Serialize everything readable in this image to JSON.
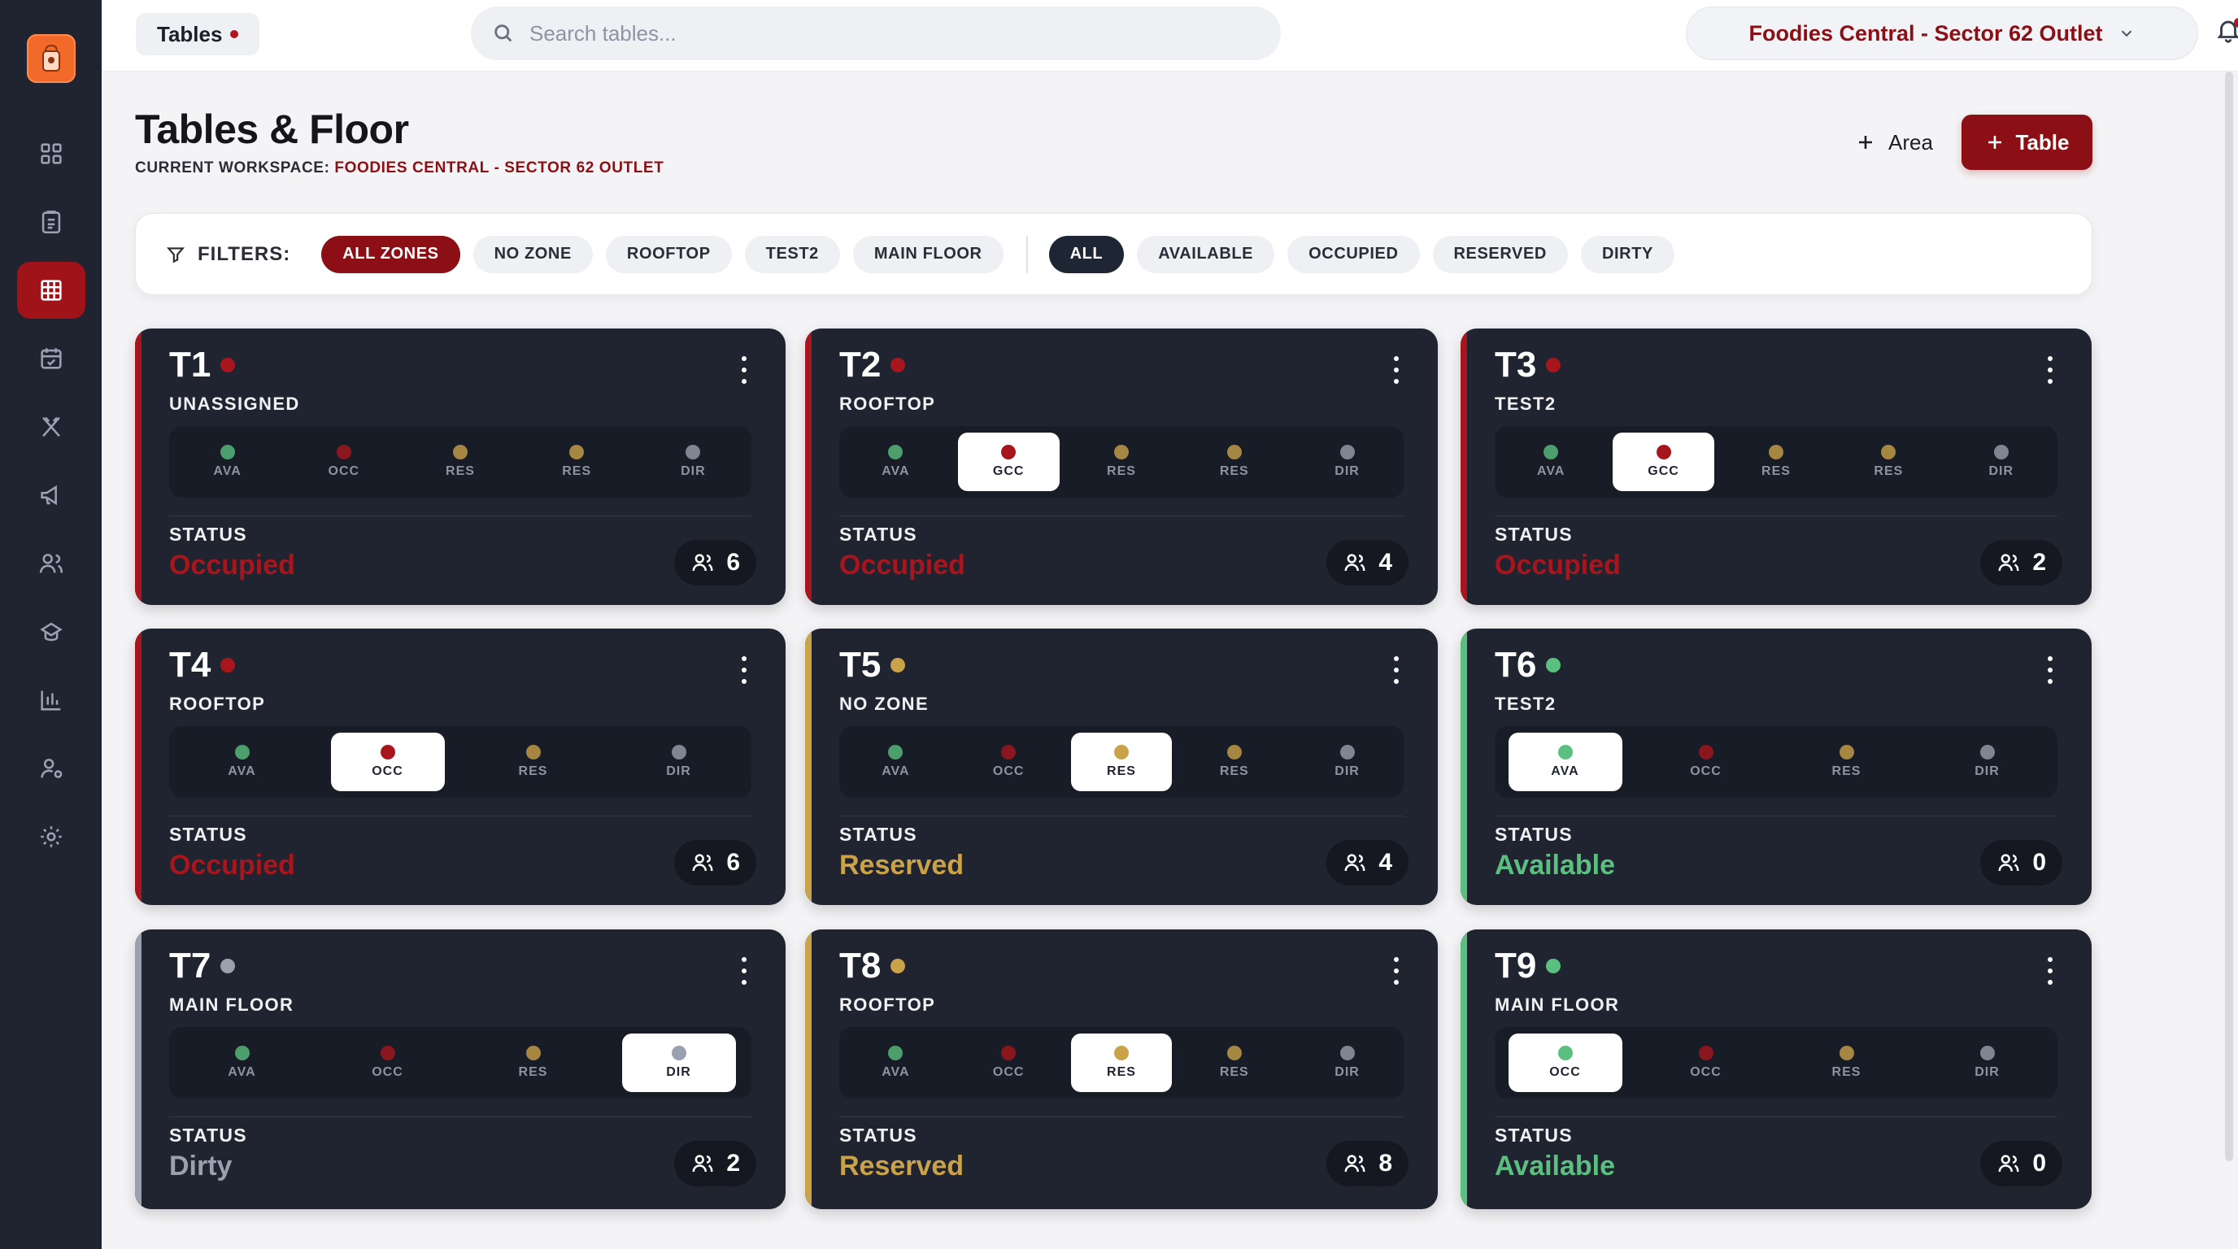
{
  "topbar": {
    "breadcrumb": "Tables",
    "search_placeholder": "Search tables...",
    "outlet": "Foodies Central - Sector 62 Outlet"
  },
  "sidebar": {
    "items": [
      {
        "name": "dashboard",
        "icon": "grid-icon",
        "active": false
      },
      {
        "name": "orders",
        "icon": "clipboard-icon",
        "active": false
      },
      {
        "name": "tables",
        "icon": "table-grid-icon",
        "active": true
      },
      {
        "name": "reservations",
        "icon": "calendar-check-icon",
        "active": false
      },
      {
        "name": "menu",
        "icon": "utensils-icon",
        "active": false
      },
      {
        "name": "marketing",
        "icon": "megaphone-icon",
        "active": false
      },
      {
        "name": "customers",
        "icon": "users-icon",
        "active": false
      },
      {
        "name": "kitchen",
        "icon": "chef-hat-icon",
        "active": false
      },
      {
        "name": "reports",
        "icon": "bar-chart-icon",
        "active": false
      },
      {
        "name": "staff",
        "icon": "user-settings-icon",
        "active": false
      },
      {
        "name": "settings",
        "icon": "gear-icon",
        "active": false
      }
    ]
  },
  "header": {
    "title": "Tables & Floor",
    "workspace_label": "CURRENT WORKSPACE:",
    "workspace_name": "FOODIES CENTRAL - SECTOR 62 OUTLET",
    "add_area_label": "Area",
    "add_table_label": "Table"
  },
  "filters": {
    "label": "FILTERS:",
    "zones": [
      "ALL ZONES",
      "NO ZONE",
      "ROOFTOP",
      "TEST2",
      "MAIN FLOOR"
    ],
    "active_zone": "ALL ZONES",
    "statuses": [
      "ALL",
      "AVAILABLE",
      "OCCUPIED",
      "RESERVED",
      "DIRTY"
    ],
    "active_status": "ALL"
  },
  "colors": {
    "occupied": "#a8161d",
    "reserved": "#c9a24a",
    "available": "#5bbf7f",
    "dirty": "#9aa0ad",
    "brand": "#8b0f14"
  },
  "tables": [
    {
      "id": "T1",
      "zone": "UNASSIGNED",
      "status_label": "STATUS",
      "status": "Occupied",
      "state": "occupied",
      "guests": "6",
      "options": [
        "AVA",
        "OCC",
        "RES",
        "RES",
        "DIR"
      ],
      "option_states": [
        "available",
        "occupied",
        "reserved",
        "reserved",
        "dirty"
      ],
      "selected": -1
    },
    {
      "id": "T2",
      "zone": "ROOFTOP",
      "status_label": "STATUS",
      "status": "Occupied",
      "state": "occupied",
      "guests": "4",
      "options": [
        "AVA",
        "GCC",
        "RES",
        "RES",
        "DIR"
      ],
      "option_states": [
        "available",
        "occupied",
        "reserved",
        "reserved",
        "dirty"
      ],
      "selected": 1
    },
    {
      "id": "T3",
      "zone": "TEST2",
      "status_label": "STATUS",
      "status": "Occupied",
      "state": "occupied",
      "guests": "2",
      "options": [
        "AVA",
        "GCC",
        "RES",
        "RES",
        "DIR"
      ],
      "option_states": [
        "available",
        "occupied",
        "reserved",
        "reserved",
        "dirty"
      ],
      "selected": 1
    },
    {
      "id": "T4",
      "zone": "ROOFTOP",
      "status_label": "STATUS",
      "status": "Occupied",
      "state": "occupied",
      "guests": "6",
      "options": [
        "AVA",
        "OCC",
        "RES",
        "DIR"
      ],
      "option_states": [
        "available",
        "occupied",
        "reserved",
        "dirty"
      ],
      "selected": 1
    },
    {
      "id": "T5",
      "zone": "NO ZONE",
      "status_label": "STATUS",
      "status": "Reserved",
      "state": "reserved",
      "guests": "4",
      "options": [
        "AVA",
        "OCC",
        "RES",
        "RES",
        "DIR"
      ],
      "option_states": [
        "available",
        "occupied",
        "reserved",
        "reserved",
        "dirty"
      ],
      "selected": 2
    },
    {
      "id": "T6",
      "zone": "TEST2",
      "status_label": "STATUS",
      "status": "Available",
      "state": "available",
      "guests": "0",
      "options": [
        "AVA",
        "OCC",
        "RES",
        "DIR"
      ],
      "option_states": [
        "available",
        "occupied",
        "reserved",
        "dirty"
      ],
      "selected": 0
    },
    {
      "id": "T7",
      "zone": "MAIN FLOOR",
      "status_label": "STATUS",
      "status": "Dirty",
      "state": "dirty",
      "guests": "2",
      "options": [
        "AVA",
        "OCC",
        "RES",
        "DIR"
      ],
      "option_states": [
        "available",
        "occupied",
        "reserved",
        "dirty"
      ],
      "selected": 3
    },
    {
      "id": "T8",
      "zone": "ROOFTOP",
      "status_label": "STATUS",
      "status": "Reserved",
      "state": "reserved",
      "guests": "8",
      "options": [
        "AVA",
        "OCC",
        "RES",
        "RES",
        "DIR"
      ],
      "option_states": [
        "available",
        "occupied",
        "reserved",
        "reserved",
        "dirty"
      ],
      "selected": 2
    },
    {
      "id": "T9",
      "zone": "MAIN FLOOR",
      "status_label": "STATUS",
      "status": "Available",
      "state": "available",
      "guests": "0",
      "options": [
        "OCC",
        "OCC",
        "RES",
        "DIR"
      ],
      "option_states": [
        "available",
        "occupied",
        "reserved",
        "dirty"
      ],
      "selected": 0
    }
  ]
}
